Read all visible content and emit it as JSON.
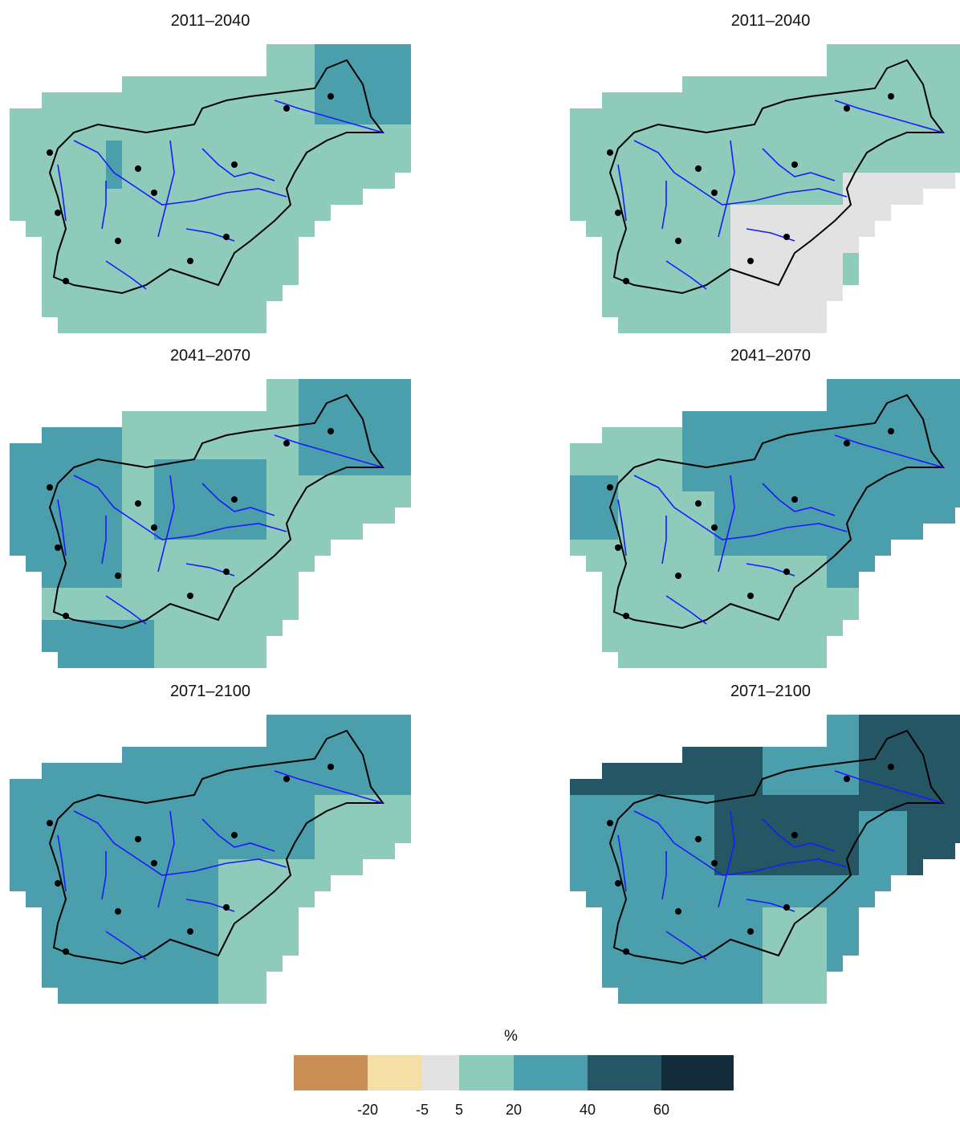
{
  "figure": {
    "panels": [
      {
        "title": "2011–2040",
        "column": "left",
        "row": 1,
        "scheme": "near_left"
      },
      {
        "title": "2011–2040",
        "column": "right",
        "row": 1,
        "scheme": "near_right"
      },
      {
        "title": "2041–2070",
        "column": "left",
        "row": 2,
        "scheme": "mid_left"
      },
      {
        "title": "2041–2070",
        "column": "right",
        "row": 2,
        "scheme": "mid_right"
      },
      {
        "title": "2071–2100",
        "column": "left",
        "row": 3,
        "scheme": "far_left"
      },
      {
        "title": "2071–2100",
        "column": "right",
        "row": 3,
        "scheme": "far_right"
      }
    ]
  },
  "legend": {
    "unit": "%",
    "bins": [
      {
        "color": "#c98f55"
      },
      {
        "color": "#f6dfa6"
      },
      {
        "color": "#e2e2e2"
      },
      {
        "color": "#8ecbbb"
      },
      {
        "color": "#4b9eab"
      },
      {
        "color": "#245663"
      },
      {
        "color": "#132b3a"
      }
    ],
    "tick_labels": [
      "-20",
      "-5",
      "5",
      "20",
      "40",
      "60"
    ]
  },
  "colors": {
    "border": "#000000",
    "rivers": "#1a1aff",
    "cities": "#000000"
  }
}
